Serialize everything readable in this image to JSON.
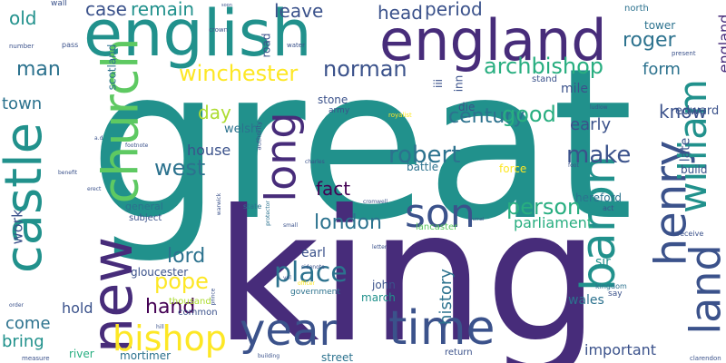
{
  "palette": {
    "dark_purple": "#440154",
    "indigo": "#472c7a",
    "blue": "#3b528b",
    "steel": "#2c728e",
    "teal": "#21918c",
    "green_teal": "#28ae80",
    "green": "#5ec962",
    "lime": "#addc30",
    "yellow": "#fde725"
  },
  "words": [
    {
      "text": "great",
      "color": "#21918c"
    },
    {
      "text": "king",
      "color": "#472c7a"
    },
    {
      "text": "english",
      "color": "#21918c"
    },
    {
      "text": "england",
      "color": "#472c7a"
    },
    {
      "text": "church",
      "color": "#5ec962"
    },
    {
      "text": "castle",
      "color": "#21918c"
    },
    {
      "text": "new",
      "color": "#472c7a"
    },
    {
      "text": "long",
      "color": "#472c7a"
    },
    {
      "text": "year",
      "color": "#3b528b"
    },
    {
      "text": "time",
      "color": "#3b528b"
    },
    {
      "text": "henry",
      "color": "#3b528b"
    },
    {
      "text": "baron",
      "color": "#21918c"
    },
    {
      "text": "land",
      "color": "#3b528b"
    },
    {
      "text": "william",
      "color": "#21918c"
    },
    {
      "text": "son",
      "color": "#3b528b"
    },
    {
      "text": "bishop",
      "color": "#fde725"
    },
    {
      "text": "archbishop",
      "color": "#28ae80"
    },
    {
      "text": "winchester",
      "color": "#fde725"
    },
    {
      "text": "norman",
      "color": "#3b528b"
    },
    {
      "text": "roger",
      "color": "#2c728e"
    },
    {
      "text": "england",
      "color": "#472c7a"
    },
    {
      "text": "robert",
      "color": "#2c728e"
    },
    {
      "text": "person",
      "color": "#28ae80"
    },
    {
      "text": "century",
      "color": "#2c728e"
    },
    {
      "text": "west",
      "color": "#2c728e"
    },
    {
      "text": "make",
      "color": "#3b528b"
    },
    {
      "text": "place",
      "color": "#2c728e"
    },
    {
      "text": "pope",
      "color": "#fde725"
    },
    {
      "text": "london",
      "color": "#2c728e"
    },
    {
      "text": "lord",
      "color": "#2c728e"
    },
    {
      "text": "hand",
      "color": "#440154"
    },
    {
      "text": "man",
      "color": "#2c728e"
    },
    {
      "text": "good",
      "color": "#28ae80"
    },
    {
      "text": "know",
      "color": "#3b528b"
    },
    {
      "text": "leave",
      "color": "#3b528b"
    },
    {
      "text": "head",
      "color": "#3b528b"
    },
    {
      "text": "period",
      "color": "#3b528b"
    },
    {
      "text": "case",
      "color": "#3b528b"
    },
    {
      "text": "remain",
      "color": "#21918c"
    },
    {
      "text": "old",
      "color": "#21918c"
    },
    {
      "text": "fact",
      "color": "#440154"
    },
    {
      "text": "day",
      "color": "#addc30"
    },
    {
      "text": "house",
      "color": "#3b528b"
    },
    {
      "text": "town",
      "color": "#2c728e"
    },
    {
      "text": "early",
      "color": "#3b528b"
    },
    {
      "text": "form",
      "color": "#2c728e"
    },
    {
      "text": "edward",
      "color": "#3b528b"
    },
    {
      "text": "parliament",
      "color": "#28ae80"
    },
    {
      "text": "history",
      "color": "#2c728e"
    },
    {
      "text": "come",
      "color": "#2c728e"
    },
    {
      "text": "bring",
      "color": "#21918c"
    },
    {
      "text": "hold",
      "color": "#3b528b"
    },
    {
      "text": "important",
      "color": "#3b528b"
    },
    {
      "text": "work",
      "color": "#3b528b"
    },
    {
      "text": "mile",
      "color": "#3b528b"
    },
    {
      "text": "stone",
      "color": "#3b528b"
    },
    {
      "text": "welsh",
      "color": "#2c728e"
    },
    {
      "text": "late",
      "color": "#3b528b"
    },
    {
      "text": "hereford",
      "color": "#2c728e"
    },
    {
      "text": "earl",
      "color": "#3b528b"
    },
    {
      "text": "gloucester",
      "color": "#3b528b"
    },
    {
      "text": "wales",
      "color": "#2c728e"
    },
    {
      "text": "sir",
      "color": "#21918c"
    },
    {
      "text": "john",
      "color": "#3b528b"
    },
    {
      "text": "march",
      "color": "#21918c"
    },
    {
      "text": "battle",
      "color": "#2c728e"
    },
    {
      "text": "die",
      "color": "#3b528b"
    },
    {
      "text": "inn",
      "color": "#3b528b"
    },
    {
      "text": "iii",
      "color": "#3b528b"
    },
    {
      "text": "road",
      "color": "#3b528b"
    },
    {
      "text": "scotland",
      "color": "#2c728e"
    },
    {
      "text": "tower",
      "color": "#2c728e"
    },
    {
      "text": "north",
      "color": "#2c728e"
    },
    {
      "text": "stand",
      "color": "#3b528b"
    },
    {
      "text": "force",
      "color": "#fde725"
    },
    {
      "text": "build",
      "color": "#3b528b"
    },
    {
      "text": "general",
      "color": "#2c728e"
    },
    {
      "text": "subject",
      "color": "#3b528b"
    },
    {
      "text": "thousand",
      "color": "#addc30"
    },
    {
      "text": "common",
      "color": "#3b528b"
    },
    {
      "text": "river",
      "color": "#28ae80"
    },
    {
      "text": "mortimer",
      "color": "#2c728e"
    },
    {
      "text": "street",
      "color": "#2c728e"
    },
    {
      "text": "lancaster",
      "color": "#5ec962"
    },
    {
      "text": "army",
      "color": "#3b528b"
    },
    {
      "text": "return",
      "color": "#3b528b"
    },
    {
      "text": "government",
      "color": "#2c728e"
    },
    {
      "text": "kingdom",
      "color": "#2c728e"
    },
    {
      "text": "say",
      "color": "#3b528b"
    },
    {
      "text": "receive",
      "color": "#3b528b"
    },
    {
      "text": "act",
      "color": "#3b528b"
    },
    {
      "text": "wall",
      "color": "#3b528b"
    },
    {
      "text": "pass",
      "color": "#3b528b"
    },
    {
      "text": "number",
      "color": "#3b528b"
    },
    {
      "text": "crown",
      "color": "#3b528b"
    },
    {
      "text": "water",
      "color": "#3b528b"
    },
    {
      "text": "present",
      "color": "#3b528b"
    },
    {
      "text": "royalist",
      "color": "#fde725"
    },
    {
      "text": "ludlow",
      "color": "#3b528b"
    },
    {
      "text": "charles",
      "color": "#3b528b"
    },
    {
      "text": "cromwell",
      "color": "#3b528b"
    },
    {
      "text": "authority",
      "color": "#3b528b"
    },
    {
      "text": "footnote",
      "color": "#3b528b"
    },
    {
      "text": "benefit",
      "color": "#3b528b"
    },
    {
      "text": "erect",
      "color": "#3b528b"
    },
    {
      "text": "journal",
      "color": "#3b528b"
    },
    {
      "text": "state",
      "color": "#2c728e"
    },
    {
      "text": "protector",
      "color": "#2c728e"
    },
    {
      "text": "small",
      "color": "#3b528b"
    },
    {
      "text": "letter",
      "color": "#3b528b"
    },
    {
      "text": "sidenote",
      "color": "#3b528b"
    },
    {
      "text": "vol",
      "color": "#3b528b"
    },
    {
      "text": "officer",
      "color": "#fde725"
    },
    {
      "text": "order",
      "color": "#3b528b"
    },
    {
      "text": "measure",
      "color": "#3b528b"
    },
    {
      "text": "building",
      "color": "#3b528b"
    },
    {
      "text": "hill",
      "color": "#3b528b"
    },
    {
      "text": "prince",
      "color": "#3b528b"
    },
    {
      "text": "clarendon",
      "color": "#3b528b"
    },
    {
      "text": "warwick",
      "color": "#3b528b"
    },
    {
      "text": "soon",
      "color": "#3b528b"
    },
    {
      "text": "foot",
      "color": "#3b528b"
    },
    {
      "text": "a.d",
      "color": "#3b528b"
    }
  ]
}
